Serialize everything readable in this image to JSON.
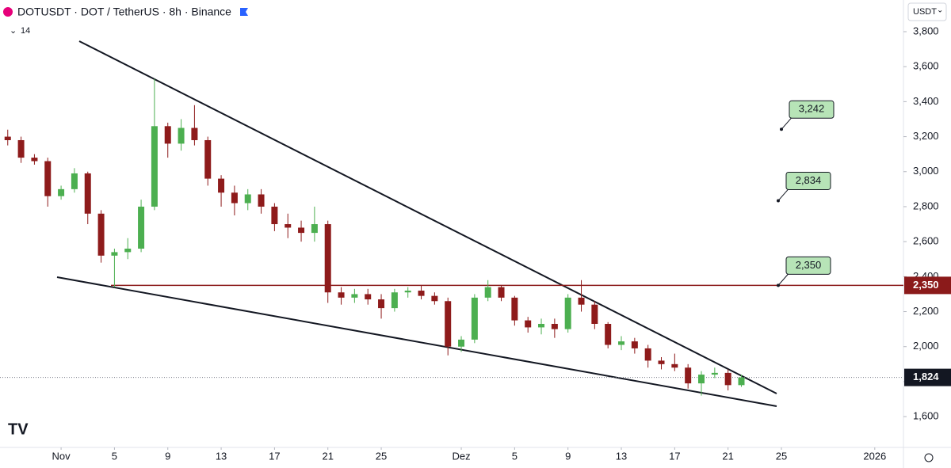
{
  "chart_data": {
    "type": "candlestick",
    "title": "DOTUSDT · DOT / TetherUS · 8h · Binance",
    "indicator": "14",
    "currency": "USDT",
    "up_color": "#4caf50",
    "down_color": "#8e1b1b",
    "grid": false,
    "xlim": [
      -4.58,
      63.15
    ],
    "ylim": [
      1424,
      3981
    ],
    "xticks": [
      {
        "value": 0,
        "label": "Nov"
      },
      {
        "value": 4,
        "label": "5"
      },
      {
        "value": 8,
        "label": "9"
      },
      {
        "value": 12,
        "label": "13"
      },
      {
        "value": 16,
        "label": "17"
      },
      {
        "value": 20,
        "label": "21"
      },
      {
        "value": 24,
        "label": "25"
      },
      {
        "value": 30,
        "label": "Dez"
      },
      {
        "value": 34,
        "label": "5"
      },
      {
        "value": 38,
        "label": "9"
      },
      {
        "value": 42,
        "label": "13"
      },
      {
        "value": 46,
        "label": "17"
      },
      {
        "value": 50,
        "label": "21"
      },
      {
        "value": 54,
        "label": "25"
      },
      {
        "value": 61,
        "label": "2026"
      }
    ],
    "yticks": [
      {
        "value": 1600,
        "label": "1,600"
      },
      {
        "value": 1800,
        "label": "1,800"
      },
      {
        "value": 2000,
        "label": "2,000"
      },
      {
        "value": 2200,
        "label": "2,200"
      },
      {
        "value": 2400,
        "label": "2,400"
      },
      {
        "value": 2600,
        "label": "2,600"
      },
      {
        "value": 2800,
        "label": "2,800"
      },
      {
        "value": 3000,
        "label": "3,000"
      },
      {
        "value": 3200,
        "label": "3,200"
      },
      {
        "value": 3400,
        "label": "3,400"
      },
      {
        "value": 3600,
        "label": "3,600"
      },
      {
        "value": 3800,
        "label": "3,800"
      }
    ],
    "x": [
      -4,
      -3,
      -2,
      -1,
      0,
      1,
      2,
      3,
      4,
      5,
      6,
      7,
      8,
      9,
      10,
      11,
      12,
      13,
      14,
      15,
      16,
      17,
      18,
      19,
      20,
      21,
      22,
      23,
      24,
      25,
      26,
      27,
      28,
      29,
      30,
      31,
      32,
      33,
      34,
      35,
      36,
      37,
      38,
      39,
      40,
      41,
      42,
      43,
      44,
      45,
      46,
      47,
      48,
      49,
      50,
      51
    ],
    "candles": [
      [
        3200,
        3240,
        3150,
        3180
      ],
      [
        3180,
        3200,
        3050,
        3080
      ],
      [
        3080,
        3100,
        3040,
        3060
      ],
      [
        3060,
        3080,
        2800,
        2860
      ],
      [
        2860,
        2920,
        2840,
        2900
      ],
      [
        2900,
        3020,
        2880,
        2990
      ],
      [
        2990,
        3000,
        2700,
        2760
      ],
      [
        2760,
        2780,
        2480,
        2520
      ],
      [
        2520,
        2560,
        2340,
        2540
      ],
      [
        2540,
        2620,
        2500,
        2560
      ],
      [
        2560,
        2840,
        2540,
        2800
      ],
      [
        2800,
        3530,
        2780,
        3260
      ],
      [
        3260,
        3280,
        3080,
        3160
      ],
      [
        3160,
        3300,
        3120,
        3250
      ],
      [
        3250,
        3380,
        3150,
        3180
      ],
      [
        3180,
        3200,
        2920,
        2960
      ],
      [
        2960,
        2980,
        2800,
        2880
      ],
      [
        2880,
        2920,
        2750,
        2820
      ],
      [
        2820,
        2900,
        2780,
        2870
      ],
      [
        2870,
        2900,
        2760,
        2800
      ],
      [
        2800,
        2820,
        2660,
        2700
      ],
      [
        2700,
        2760,
        2620,
        2680
      ],
      [
        2680,
        2720,
        2600,
        2650
      ],
      [
        2650,
        2800,
        2600,
        2700
      ],
      [
        2700,
        2720,
        2250,
        2310
      ],
      [
        2310,
        2340,
        2240,
        2280
      ],
      [
        2280,
        2330,
        2250,
        2300
      ],
      [
        2300,
        2330,
        2240,
        2270
      ],
      [
        2270,
        2300,
        2160,
        2220
      ],
      [
        2220,
        2330,
        2200,
        2310
      ],
      [
        2310,
        2340,
        2280,
        2320
      ],
      [
        2320,
        2350,
        2270,
        2290
      ],
      [
        2290,
        2310,
        2240,
        2260
      ],
      [
        2260,
        2280,
        1950,
        2000
      ],
      [
        2000,
        2060,
        1970,
        2040
      ],
      [
        2040,
        2300,
        2020,
        2280
      ],
      [
        2280,
        2380,
        2260,
        2340
      ],
      [
        2340,
        2350,
        2260,
        2280
      ],
      [
        2280,
        2290,
        2120,
        2150
      ],
      [
        2150,
        2170,
        2080,
        2110
      ],
      [
        2110,
        2160,
        2070,
        2130
      ],
      [
        2130,
        2160,
        2050,
        2100
      ],
      [
        2100,
        2300,
        2080,
        2280
      ],
      [
        2280,
        2380,
        2200,
        2240
      ],
      [
        2240,
        2260,
        2100,
        2130
      ],
      [
        2130,
        2140,
        1990,
        2010
      ],
      [
        2010,
        2060,
        1980,
        2030
      ],
      [
        2030,
        2050,
        1960,
        1990
      ],
      [
        1990,
        2010,
        1880,
        1920
      ],
      [
        1920,
        1940,
        1870,
        1900
      ],
      [
        1900,
        1960,
        1860,
        1880
      ],
      [
        1880,
        1900,
        1760,
        1790
      ],
      [
        1790,
        1860,
        1720,
        1840
      ],
      [
        1840,
        1880,
        1820,
        1850
      ],
      [
        1850,
        1870,
        1750,
        1780
      ],
      [
        1780,
        1840,
        1770,
        1824
      ]
    ],
    "hline": {
      "value": 2350,
      "color": "#8b1a1a"
    },
    "axis_tags": [
      {
        "value": 2350,
        "label": "2,350",
        "color": "#8b1a1a"
      },
      {
        "value": 1824,
        "label": "1,824",
        "color": "#131722"
      }
    ],
    "callouts": [
      {
        "value": 3242,
        "label": "3,242"
      },
      {
        "value": 2834,
        "label": "2,834"
      },
      {
        "value": 2350,
        "label": "2,350"
      }
    ]
  }
}
